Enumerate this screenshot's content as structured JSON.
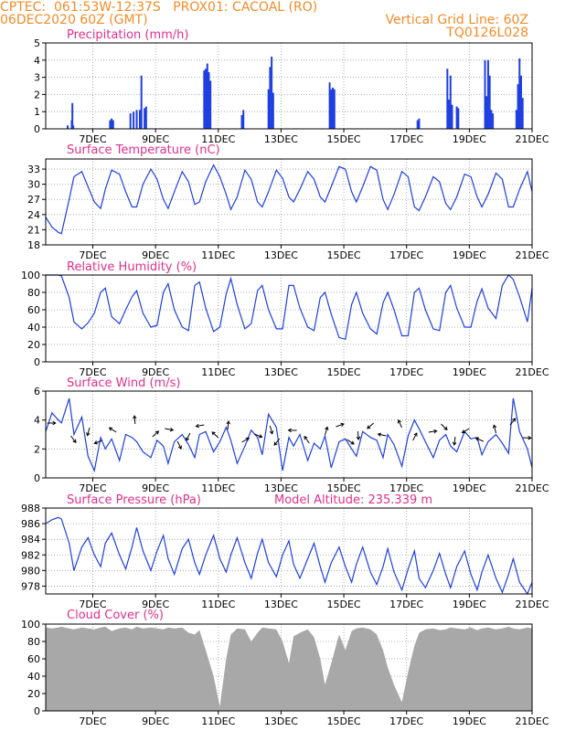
{
  "header": {
    "line1": "CPTEC:  061:53W-12:37S   PROX01: CACOAL (RO)",
    "line2": "06DEC2020 60Z (GMT)",
    "grid_note": "Vertical Grid Line: 60Z",
    "code": "TQ0126L028"
  },
  "colors": {
    "header": "#f28c28",
    "title": "#e0308a",
    "series": "#1f3fe0",
    "cloud": "#a8a8a8"
  },
  "x_labels": [
    "7DEC",
    "9DEC",
    "11DEC",
    "13DEC",
    "15DEC",
    "17DEC",
    "19DEC",
    "21DEC"
  ],
  "chart_data": [
    {
      "type": "bar",
      "title": "Precipitation (mm/h)",
      "ylim": [
        0,
        5
      ],
      "yticks": [
        0,
        1,
        2,
        3,
        4,
        5
      ],
      "x_days": [
        6.2,
        6.33,
        6.35,
        6.38,
        7.55,
        7.6,
        7.65,
        8.2,
        8.3,
        8.4,
        8.5,
        8.55,
        8.65,
        8.7,
        10.55,
        10.6,
        10.65,
        10.7,
        10.75,
        11.75,
        11.8,
        12.6,
        12.65,
        12.7,
        12.75,
        14.55,
        14.6,
        14.65,
        14.7,
        17.35,
        17.4,
        18.3,
        18.35,
        18.4,
        18.45,
        18.6,
        18.65,
        19.5,
        19.55,
        19.6,
        19.65,
        19.7,
        19.75,
        20.5,
        20.55,
        20.6,
        20.65,
        20.7
      ],
      "values": [
        0.2,
        0.5,
        1.5,
        0.2,
        0.5,
        0.6,
        0.5,
        0.9,
        1.0,
        1.1,
        1.1,
        3.1,
        1.2,
        1.3,
        3.4,
        3.5,
        3.8,
        3.3,
        2.8,
        0.8,
        1.1,
        2.3,
        3.6,
        4.2,
        2.1,
        2.7,
        2.3,
        2.4,
        2.3,
        0.5,
        0.6,
        3.5,
        1.7,
        3.1,
        1.4,
        1.3,
        1.2,
        4.0,
        1.9,
        4.0,
        3.1,
        1.1,
        0.9,
        1.1,
        2.6,
        4.1,
        3.1,
        1.8
      ]
    },
    {
      "type": "line",
      "title": "Surface Temperature (nC)",
      "ylim": [
        18,
        35
      ],
      "yticks": [
        18,
        21,
        24,
        27,
        30,
        33
      ],
      "x_days": [
        5.5,
        5.7,
        5.9,
        6.0,
        6.25,
        6.4,
        6.65,
        6.85,
        7.05,
        7.25,
        7.4,
        7.6,
        7.85,
        8.05,
        8.25,
        8.4,
        8.6,
        8.85,
        9.05,
        9.25,
        9.4,
        9.6,
        9.85,
        10.05,
        10.25,
        10.4,
        10.6,
        10.85,
        11.05,
        11.25,
        11.4,
        11.6,
        11.85,
        12.05,
        12.25,
        12.4,
        12.6,
        12.85,
        13.05,
        13.25,
        13.4,
        13.6,
        13.85,
        14.05,
        14.25,
        14.4,
        14.6,
        14.85,
        15.05,
        15.25,
        15.4,
        15.6,
        15.85,
        16.05,
        16.25,
        16.4,
        16.6,
        16.85,
        17.05,
        17.25,
        17.4,
        17.6,
        17.85,
        18.05,
        18.25,
        18.4,
        18.6,
        18.85,
        19.05,
        19.25,
        19.4,
        19.6,
        19.85,
        20.05,
        20.25,
        20.4,
        20.6,
        20.85,
        21.0
      ],
      "values": [
        23.5,
        21.5,
        20.5,
        20.2,
        27,
        31.5,
        32.5,
        29.5,
        26.5,
        25.2,
        29,
        32.8,
        32,
        28.5,
        25.5,
        25.5,
        30,
        33,
        31,
        27,
        25.2,
        28.5,
        32.5,
        30.5,
        26,
        26.5,
        30.5,
        33.8,
        31.5,
        28,
        25,
        27.5,
        32.8,
        31,
        26.5,
        25.5,
        28.5,
        32.8,
        31.2,
        27.5,
        26.5,
        29,
        32.5,
        31,
        27.5,
        26.5,
        29.5,
        33.5,
        33,
        28.5,
        26.5,
        29.5,
        33.5,
        32.8,
        27,
        25,
        28,
        32.5,
        31.5,
        25.5,
        24.8,
        27.5,
        31.5,
        30.5,
        26.2,
        25,
        27.5,
        32,
        31.5,
        27.5,
        25.5,
        28,
        32.2,
        31,
        25.5,
        25.5,
        29,
        32.5,
        28.5
      ]
    },
    {
      "type": "line",
      "title": "Relative Humidity (%)",
      "ylim": [
        0,
        100
      ],
      "yticks": [
        0,
        20,
        40,
        60,
        80,
        100
      ],
      "x_days": [
        5.5,
        5.7,
        5.9,
        6.0,
        6.25,
        6.4,
        6.65,
        6.85,
        7.05,
        7.25,
        7.4,
        7.6,
        7.85,
        8.05,
        8.25,
        8.4,
        8.6,
        8.85,
        9.05,
        9.25,
        9.4,
        9.6,
        9.85,
        10.05,
        10.25,
        10.4,
        10.6,
        10.85,
        11.05,
        11.25,
        11.4,
        11.6,
        11.85,
        12.05,
        12.25,
        12.4,
        12.6,
        12.85,
        13.05,
        13.25,
        13.4,
        13.6,
        13.85,
        14.05,
        14.25,
        14.4,
        14.6,
        14.85,
        15.05,
        15.25,
        15.4,
        15.6,
        15.85,
        16.05,
        16.25,
        16.4,
        16.6,
        16.85,
        17.05,
        17.25,
        17.4,
        17.6,
        17.85,
        18.05,
        18.25,
        18.4,
        18.6,
        18.85,
        19.05,
        19.25,
        19.4,
        19.6,
        19.85,
        20.05,
        20.25,
        20.4,
        20.6,
        20.85,
        21.0
      ],
      "values": [
        100,
        100,
        100,
        99,
        74,
        46,
        38,
        45,
        56,
        80,
        85,
        52,
        44,
        60,
        75,
        82,
        56,
        40,
        42,
        80,
        90,
        60,
        40,
        36,
        88,
        92,
        62,
        35,
        40,
        78,
        96,
        66,
        38,
        44,
        82,
        88,
        60,
        38,
        38,
        88,
        88,
        62,
        40,
        36,
        74,
        80,
        55,
        28,
        26,
        66,
        80,
        56,
        38,
        32,
        68,
        80,
        60,
        30,
        30,
        80,
        85,
        60,
        38,
        36,
        80,
        88,
        62,
        40,
        40,
        70,
        84,
        62,
        50,
        88,
        100,
        95,
        75,
        46,
        85
      ]
    },
    {
      "type": "line",
      "title": "Surface Wind (m/s)",
      "ylim": [
        0,
        6
      ],
      "yticks": [
        0,
        2,
        4,
        6
      ],
      "x_days": [
        5.5,
        5.7,
        5.9,
        6.0,
        6.25,
        6.4,
        6.65,
        6.85,
        7.05,
        7.25,
        7.4,
        7.6,
        7.85,
        8.05,
        8.25,
        8.4,
        8.6,
        8.85,
        9.05,
        9.25,
        9.4,
        9.6,
        9.85,
        10.05,
        10.25,
        10.4,
        10.6,
        10.85,
        11.05,
        11.25,
        11.4,
        11.6,
        11.85,
        12.05,
        12.25,
        12.4,
        12.6,
        12.85,
        13.05,
        13.25,
        13.4,
        13.6,
        13.85,
        14.05,
        14.25,
        14.4,
        14.6,
        14.85,
        15.05,
        15.25,
        15.4,
        15.6,
        15.85,
        16.05,
        16.25,
        16.4,
        16.6,
        16.85,
        17.05,
        17.25,
        17.4,
        17.6,
        17.85,
        18.05,
        18.25,
        18.4,
        18.6,
        18.85,
        19.05,
        19.25,
        19.4,
        19.6,
        19.85,
        20.05,
        20.25,
        20.4,
        20.6,
        20.85,
        21.0
      ],
      "values": [
        3.2,
        4.5,
        4.0,
        3.8,
        5.5,
        3.0,
        4.2,
        1.5,
        0.5,
        2.8,
        2.0,
        2.7,
        1.2,
        3.0,
        2.8,
        2.5,
        1.8,
        1.4,
        2.6,
        2.2,
        1.0,
        2.5,
        3.0,
        2.3,
        1.4,
        3.0,
        3.2,
        1.8,
        2.5,
        3.5,
        2.6,
        1.0,
        2.2,
        3.3,
        2.8,
        1.6,
        4.4,
        3.5,
        0.5,
        2.8,
        2.2,
        3.0,
        1.2,
        2.4,
        2.0,
        2.9,
        0.7,
        2.5,
        2.7,
        2.0,
        1.5,
        3.2,
        2.8,
        2.6,
        1.4,
        3.0,
        2.3,
        0.8,
        2.9,
        4.0,
        3.4,
        2.5,
        1.4,
        2.6,
        3.0,
        2.2,
        1.8,
        3.2,
        2.7,
        2.8,
        1.6,
        2.5,
        3.0,
        2.4,
        1.7,
        5.5,
        3.2,
        2.0,
        0.7
      ]
    },
    {
      "type": "line",
      "title": "Surface Pressure (hPa)",
      "annotation": "Model Altitude: 235.339 m",
      "ylim": [
        977,
        988
      ],
      "yticks": [
        978,
        980,
        982,
        984,
        986,
        988
      ],
      "x_days": [
        5.5,
        5.7,
        5.9,
        6.0,
        6.25,
        6.4,
        6.65,
        6.85,
        7.05,
        7.25,
        7.4,
        7.6,
        7.85,
        8.05,
        8.25,
        8.4,
        8.6,
        8.85,
        9.05,
        9.25,
        9.4,
        9.6,
        9.85,
        10.05,
        10.25,
        10.4,
        10.6,
        10.85,
        11.05,
        11.25,
        11.4,
        11.6,
        11.85,
        12.05,
        12.25,
        12.4,
        12.6,
        12.85,
        13.05,
        13.25,
        13.4,
        13.6,
        13.85,
        14.05,
        14.25,
        14.4,
        14.6,
        14.85,
        15.05,
        15.25,
        15.4,
        15.6,
        15.85,
        16.05,
        16.25,
        16.4,
        16.6,
        16.85,
        17.05,
        17.25,
        17.4,
        17.6,
        17.85,
        18.05,
        18.25,
        18.4,
        18.6,
        18.85,
        19.05,
        19.25,
        19.4,
        19.6,
        19.85,
        20.05,
        20.25,
        20.4,
        20.6,
        20.85,
        21.0
      ],
      "values": [
        986.0,
        986.5,
        986.8,
        986.6,
        983.5,
        980.0,
        983.0,
        984.2,
        982.0,
        980.5,
        983.5,
        984.8,
        982.0,
        980.2,
        983.0,
        985.5,
        982.5,
        980.0,
        982.5,
        984.5,
        981.5,
        979.5,
        982.8,
        984.0,
        981.0,
        979.5,
        982.0,
        984.5,
        981.5,
        979.8,
        982.0,
        984.2,
        981.0,
        979.0,
        982.2,
        984.0,
        981.0,
        979.2,
        982.0,
        983.8,
        980.8,
        979.0,
        981.5,
        983.5,
        980.5,
        978.5,
        981.0,
        983.0,
        980.5,
        978.5,
        980.8,
        983.0,
        979.8,
        978.2,
        980.5,
        982.8,
        979.8,
        977.5,
        980.2,
        982.5,
        979.0,
        977.8,
        980.0,
        982.2,
        979.5,
        977.8,
        980.5,
        982.5,
        979.5,
        977.5,
        979.8,
        982.0,
        979.0,
        977.2,
        979.5,
        981.5,
        978.5,
        977.0,
        978.5
      ]
    },
    {
      "type": "area",
      "title": "Cloud Cover (%)",
      "ylim": [
        0,
        100
      ],
      "yticks": [
        0,
        20,
        40,
        60,
        80,
        100
      ],
      "x_days": [
        5.5,
        5.7,
        5.9,
        6.0,
        6.25,
        6.4,
        6.65,
        6.85,
        7.05,
        7.25,
        7.4,
        7.6,
        7.85,
        8.05,
        8.25,
        8.4,
        8.6,
        8.85,
        9.05,
        9.25,
        9.4,
        9.6,
        9.85,
        10.05,
        10.25,
        10.4,
        10.6,
        10.85,
        11.05,
        11.25,
        11.4,
        11.6,
        11.85,
        12.05,
        12.25,
        12.4,
        12.6,
        12.85,
        13.05,
        13.25,
        13.4,
        13.6,
        13.85,
        14.05,
        14.25,
        14.4,
        14.6,
        14.85,
        15.05,
        15.25,
        15.4,
        15.6,
        15.85,
        16.05,
        16.25,
        16.4,
        16.6,
        16.85,
        17.05,
        17.25,
        17.4,
        17.6,
        17.85,
        18.05,
        18.25,
        18.4,
        18.6,
        18.85,
        19.05,
        19.25,
        19.4,
        19.6,
        19.85,
        20.05,
        20.25,
        20.4,
        20.6,
        20.85,
        21.0
      ],
      "values": [
        96,
        95,
        96,
        97,
        95,
        94,
        96,
        95,
        94,
        96,
        97,
        92,
        95,
        96,
        94,
        97,
        95,
        96,
        95,
        94,
        96,
        95,
        96,
        90,
        88,
        93,
        70,
        40,
        5,
        60,
        88,
        95,
        94,
        80,
        90,
        96,
        95,
        94,
        80,
        55,
        86,
        90,
        94,
        85,
        60,
        30,
        55,
        88,
        70,
        92,
        95,
        96,
        94,
        88,
        70,
        50,
        30,
        10,
        45,
        75,
        90,
        94,
        95,
        93,
        94,
        96,
        95,
        94,
        96,
        93,
        95,
        96,
        94,
        95,
        97,
        95,
        94,
        96,
        95
      ]
    }
  ]
}
